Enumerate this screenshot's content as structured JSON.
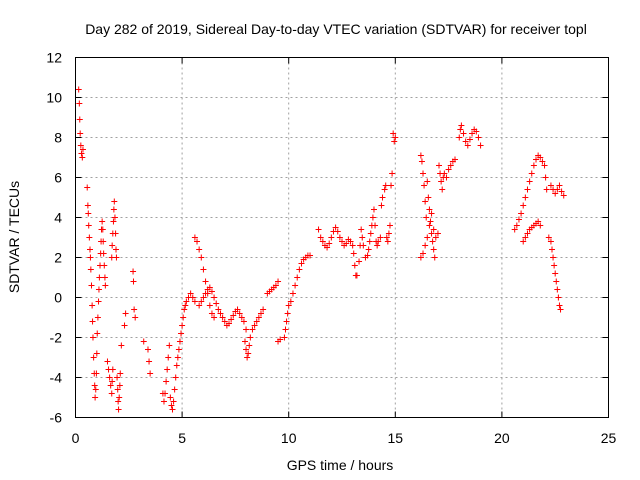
{
  "chart_data": {
    "type": "scatter",
    "title": "Day 282 of 2019, Sidereal Day-to-day VTEC variation (SDTVAR) for receiver topl",
    "xlabel": "GPS time / hours",
    "ylabel": "SDTVAR / TECUs",
    "xlim": [
      0,
      25
    ],
    "ylim": [
      -6,
      12
    ],
    "xticks": [
      0,
      5,
      10,
      15,
      20,
      25
    ],
    "yticks": [
      -6,
      -4,
      -2,
      0,
      2,
      4,
      6,
      8,
      10,
      12
    ],
    "xtick_labels": [
      "0",
      "5",
      "10",
      "15",
      "20",
      "25"
    ],
    "ytick_labels": [
      "-6",
      "-4",
      "-2",
      "0",
      "2",
      "4",
      "6",
      "8",
      "10",
      "12"
    ],
    "grid": true,
    "marker": "+",
    "color": "#ff0000",
    "series": [
      {
        "name": "SDTVAR",
        "points": [
          [
            0.15,
            10.4
          ],
          [
            0.18,
            9.7
          ],
          [
            0.2,
            8.9
          ],
          [
            0.22,
            8.2
          ],
          [
            0.25,
            7.6
          ],
          [
            0.28,
            7.2
          ],
          [
            0.32,
            7.0
          ],
          [
            0.35,
            7.4
          ],
          [
            0.55,
            5.5
          ],
          [
            0.58,
            4.6
          ],
          [
            0.6,
            4.2
          ],
          [
            0.62,
            3.6
          ],
          [
            0.65,
            3.0
          ],
          [
            0.68,
            2.4
          ],
          [
            0.7,
            2.0
          ],
          [
            0.72,
            1.4
          ],
          [
            0.75,
            0.6
          ],
          [
            0.78,
            -0.4
          ],
          [
            0.8,
            -1.2
          ],
          [
            0.82,
            -2.0
          ],
          [
            0.85,
            -3.0
          ],
          [
            0.88,
            -3.8
          ],
          [
            0.9,
            -4.4
          ],
          [
            0.92,
            -5.0
          ],
          [
            0.95,
            -4.6
          ],
          [
            0.98,
            -3.8
          ],
          [
            1.0,
            -2.8
          ],
          [
            1.02,
            -1.8
          ],
          [
            1.05,
            -1.0
          ],
          [
            1.08,
            -0.2
          ],
          [
            1.1,
            0.4
          ],
          [
            1.12,
            1.0
          ],
          [
            1.15,
            1.6
          ],
          [
            1.18,
            2.2
          ],
          [
            1.2,
            2.8
          ],
          [
            1.22,
            3.4
          ],
          [
            1.25,
            3.8
          ],
          [
            1.28,
            3.4
          ],
          [
            1.3,
            2.8
          ],
          [
            1.32,
            2.2
          ],
          [
            1.35,
            1.6
          ],
          [
            1.38,
            1.0
          ],
          [
            1.4,
            0.6
          ],
          [
            1.5,
            -3.2
          ],
          [
            1.55,
            -3.6
          ],
          [
            1.6,
            -4.0
          ],
          [
            1.65,
            -4.4
          ],
          [
            1.7,
            -4.8
          ],
          [
            1.72,
            -4.2
          ],
          [
            1.75,
            -3.6
          ],
          [
            1.7,
            2.0
          ],
          [
            1.72,
            2.6
          ],
          [
            1.75,
            3.2
          ],
          [
            1.78,
            3.8
          ],
          [
            1.8,
            4.4
          ],
          [
            1.82,
            4.8
          ],
          [
            1.85,
            4.0
          ],
          [
            1.88,
            3.2
          ],
          [
            1.9,
            2.4
          ],
          [
            1.92,
            2.0
          ],
          [
            1.95,
            -4.0
          ],
          [
            1.98,
            -4.6
          ],
          [
            2.0,
            -5.2
          ],
          [
            2.02,
            -5.6
          ],
          [
            2.05,
            -5.0
          ],
          [
            2.08,
            -4.4
          ],
          [
            2.1,
            -3.8
          ],
          [
            2.15,
            -2.4
          ],
          [
            2.3,
            -1.4
          ],
          [
            2.35,
            -0.8
          ],
          [
            2.7,
            1.3
          ],
          [
            2.72,
            0.8
          ],
          [
            2.75,
            -0.6
          ],
          [
            2.8,
            -1.0
          ],
          [
            3.2,
            -2.2
          ],
          [
            3.4,
            -2.6
          ],
          [
            3.45,
            -3.2
          ],
          [
            3.5,
            -3.8
          ],
          [
            4.1,
            -4.8
          ],
          [
            4.15,
            -5.2
          ],
          [
            4.2,
            -4.8
          ],
          [
            4.25,
            -4.2
          ],
          [
            4.3,
            -3.6
          ],
          [
            4.35,
            -3.0
          ],
          [
            4.4,
            -2.4
          ],
          [
            4.45,
            -5.0
          ],
          [
            4.5,
            -5.4
          ],
          [
            4.55,
            -5.6
          ],
          [
            4.6,
            -5.2
          ],
          [
            4.65,
            -4.6
          ],
          [
            4.7,
            -4.0
          ],
          [
            4.75,
            -3.4
          ],
          [
            4.8,
            -3.0
          ],
          [
            4.85,
            -2.6
          ],
          [
            4.9,
            -2.2
          ],
          [
            4.95,
            -1.8
          ],
          [
            5.0,
            -1.4
          ],
          [
            5.05,
            -1.0
          ],
          [
            5.1,
            -0.6
          ],
          [
            5.15,
            -0.4
          ],
          [
            5.2,
            -0.2
          ],
          [
            5.3,
            0.0
          ],
          [
            5.4,
            0.2
          ],
          [
            5.5,
            0.0
          ],
          [
            5.6,
            -0.2
          ],
          [
            5.6,
            3.0
          ],
          [
            5.7,
            2.8
          ],
          [
            5.8,
            2.4
          ],
          [
            5.9,
            2.0
          ],
          [
            6.0,
            1.4
          ],
          [
            6.1,
            0.8
          ],
          [
            6.2,
            0.2
          ],
          [
            6.3,
            -0.4
          ],
          [
            6.4,
            -0.8
          ],
          [
            6.5,
            -1.0
          ],
          [
            5.8,
            -0.4
          ],
          [
            5.9,
            -0.2
          ],
          [
            6.0,
            0.0
          ],
          [
            6.1,
            0.2
          ],
          [
            6.2,
            0.4
          ],
          [
            6.3,
            0.5
          ],
          [
            6.4,
            0.3
          ],
          [
            6.5,
            0.0
          ],
          [
            6.6,
            -0.3
          ],
          [
            6.7,
            -0.6
          ],
          [
            6.8,
            -0.8
          ],
          [
            6.9,
            -1.0
          ],
          [
            7.0,
            -1.2
          ],
          [
            7.1,
            -1.4
          ],
          [
            7.2,
            -1.3
          ],
          [
            7.3,
            -1.1
          ],
          [
            7.4,
            -0.9
          ],
          [
            7.5,
            -0.7
          ],
          [
            7.6,
            -0.6
          ],
          [
            7.7,
            -0.8
          ],
          [
            7.8,
            -1.0
          ],
          [
            7.9,
            -1.2
          ],
          [
            8.0,
            -1.6
          ],
          [
            7.95,
            -2.2
          ],
          [
            8.0,
            -2.6
          ],
          [
            8.05,
            -3.0
          ],
          [
            8.1,
            -2.8
          ],
          [
            8.15,
            -2.4
          ],
          [
            8.2,
            -2.0
          ],
          [
            8.3,
            -1.6
          ],
          [
            8.4,
            -1.4
          ],
          [
            8.5,
            -1.2
          ],
          [
            8.6,
            -1.0
          ],
          [
            8.7,
            -0.8
          ],
          [
            8.8,
            -0.6
          ],
          [
            9.0,
            0.2
          ],
          [
            9.1,
            0.3
          ],
          [
            9.2,
            0.4
          ],
          [
            9.3,
            0.5
          ],
          [
            9.4,
            0.6
          ],
          [
            9.5,
            0.8
          ],
          [
            9.5,
            -2.2
          ],
          [
            9.6,
            -2.1
          ],
          [
            9.8,
            -2.0
          ],
          [
            9.85,
            -1.6
          ],
          [
            9.9,
            -1.2
          ],
          [
            9.95,
            -0.8
          ],
          [
            10.0,
            -0.4
          ],
          [
            10.1,
            -0.2
          ],
          [
            10.2,
            0.2
          ],
          [
            10.3,
            0.6
          ],
          [
            10.4,
            1.0
          ],
          [
            10.5,
            1.4
          ],
          [
            10.6,
            1.7
          ],
          [
            10.7,
            1.9
          ],
          [
            10.8,
            2.0
          ],
          [
            10.9,
            2.1
          ],
          [
            11.0,
            2.1
          ],
          [
            11.4,
            3.4
          ],
          [
            11.5,
            3.0
          ],
          [
            11.6,
            2.8
          ],
          [
            11.7,
            2.6
          ],
          [
            11.8,
            2.5
          ],
          [
            11.9,
            2.7
          ],
          [
            12.0,
            3.0
          ],
          [
            12.1,
            3.3
          ],
          [
            12.2,
            3.5
          ],
          [
            12.3,
            3.3
          ],
          [
            12.4,
            3.0
          ],
          [
            12.5,
            2.8
          ],
          [
            12.6,
            2.6
          ],
          [
            12.7,
            2.7
          ],
          [
            12.8,
            2.9
          ],
          [
            12.9,
            2.8
          ],
          [
            13.0,
            2.6
          ],
          [
            13.05,
            2.2
          ],
          [
            13.1,
            1.6
          ],
          [
            13.15,
            1.1
          ],
          [
            13.2,
            1.1
          ],
          [
            13.3,
            1.8
          ],
          [
            13.35,
            2.6
          ],
          [
            13.4,
            3.4
          ],
          [
            13.45,
            3.0
          ],
          [
            13.5,
            2.6
          ],
          [
            13.6,
            2.0
          ],
          [
            13.7,
            2.1
          ],
          [
            13.75,
            2.4
          ],
          [
            13.8,
            2.8
          ],
          [
            13.85,
            3.2
          ],
          [
            13.9,
            3.6
          ],
          [
            13.95,
            4.0
          ],
          [
            14.0,
            4.4
          ],
          [
            14.05,
            3.6
          ],
          [
            14.1,
            2.8
          ],
          [
            14.15,
            2.6
          ],
          [
            14.2,
            2.8
          ],
          [
            14.3,
            3.0
          ],
          [
            14.35,
            4.6
          ],
          [
            14.4,
            5.0
          ],
          [
            14.5,
            5.4
          ],
          [
            14.55,
            5.6
          ],
          [
            14.6,
            3.0
          ],
          [
            14.65,
            2.8
          ],
          [
            14.7,
            3.2
          ],
          [
            14.75,
            3.6
          ],
          [
            14.8,
            5.6
          ],
          [
            14.85,
            6.2
          ],
          [
            14.9,
            8.2
          ],
          [
            14.95,
            7.8
          ],
          [
            15.0,
            8.0
          ],
          [
            16.2,
            7.1
          ],
          [
            16.25,
            6.8
          ],
          [
            16.3,
            6.2
          ],
          [
            16.35,
            5.6
          ],
          [
            16.4,
            4.8
          ],
          [
            16.45,
            4.0
          ],
          [
            16.5,
            5.8
          ],
          [
            16.55,
            5.0
          ],
          [
            16.6,
            4.4
          ],
          [
            16.65,
            3.8
          ],
          [
            16.7,
            3.2
          ],
          [
            16.75,
            2.8
          ],
          [
            16.8,
            2.4
          ],
          [
            16.85,
            2.0
          ],
          [
            16.2,
            2.0
          ],
          [
            16.3,
            2.2
          ],
          [
            16.4,
            2.6
          ],
          [
            16.5,
            3.0
          ],
          [
            16.6,
            3.6
          ],
          [
            16.7,
            4.2
          ],
          [
            16.8,
            3.4
          ],
          [
            16.9,
            3.0
          ],
          [
            17.0,
            3.2
          ],
          [
            17.05,
            6.6
          ],
          [
            17.1,
            6.2
          ],
          [
            17.15,
            5.8
          ],
          [
            17.2,
            5.4
          ],
          [
            17.25,
            6.0
          ],
          [
            17.3,
            6.2
          ],
          [
            17.4,
            6.0
          ],
          [
            17.5,
            6.4
          ],
          [
            17.6,
            6.6
          ],
          [
            17.7,
            6.8
          ],
          [
            17.8,
            6.9
          ],
          [
            18.0,
            8.0
          ],
          [
            18.05,
            8.4
          ],
          [
            18.1,
            8.6
          ],
          [
            18.2,
            8.2
          ],
          [
            18.3,
            7.8
          ],
          [
            18.4,
            7.6
          ],
          [
            18.5,
            7.9
          ],
          [
            18.6,
            8.2
          ],
          [
            18.7,
            8.4
          ],
          [
            18.8,
            8.3
          ],
          [
            18.9,
            8.0
          ],
          [
            19.0,
            7.6
          ],
          [
            20.6,
            3.4
          ],
          [
            20.7,
            3.6
          ],
          [
            20.8,
            3.9
          ],
          [
            20.9,
            4.2
          ],
          [
            21.0,
            4.6
          ],
          [
            21.1,
            5.0
          ],
          [
            21.2,
            5.4
          ],
          [
            21.3,
            5.8
          ],
          [
            21.4,
            6.2
          ],
          [
            21.5,
            6.6
          ],
          [
            21.6,
            6.9
          ],
          [
            21.7,
            7.1
          ],
          [
            21.8,
            7.0
          ],
          [
            21.9,
            6.8
          ],
          [
            22.0,
            6.6
          ],
          [
            22.05,
            6.0
          ],
          [
            22.1,
            5.4
          ],
          [
            21.0,
            2.8
          ],
          [
            21.1,
            3.0
          ],
          [
            21.2,
            3.2
          ],
          [
            21.3,
            3.4
          ],
          [
            21.4,
            3.5
          ],
          [
            21.5,
            3.6
          ],
          [
            21.6,
            3.7
          ],
          [
            21.7,
            3.8
          ],
          [
            21.8,
            3.6
          ],
          [
            22.2,
            3.0
          ],
          [
            22.3,
            2.8
          ],
          [
            22.35,
            2.4
          ],
          [
            22.4,
            2.0
          ],
          [
            22.45,
            1.6
          ],
          [
            22.5,
            1.2
          ],
          [
            22.55,
            0.8
          ],
          [
            22.6,
            0.4
          ],
          [
            22.65,
            0.0
          ],
          [
            22.7,
            -0.4
          ],
          [
            22.75,
            -0.6
          ],
          [
            22.3,
            5.6
          ],
          [
            22.4,
            5.4
          ],
          [
            22.5,
            5.2
          ],
          [
            22.6,
            5.4
          ],
          [
            22.7,
            5.6
          ],
          [
            22.8,
            5.3
          ],
          [
            22.9,
            5.1
          ]
        ]
      }
    ]
  }
}
